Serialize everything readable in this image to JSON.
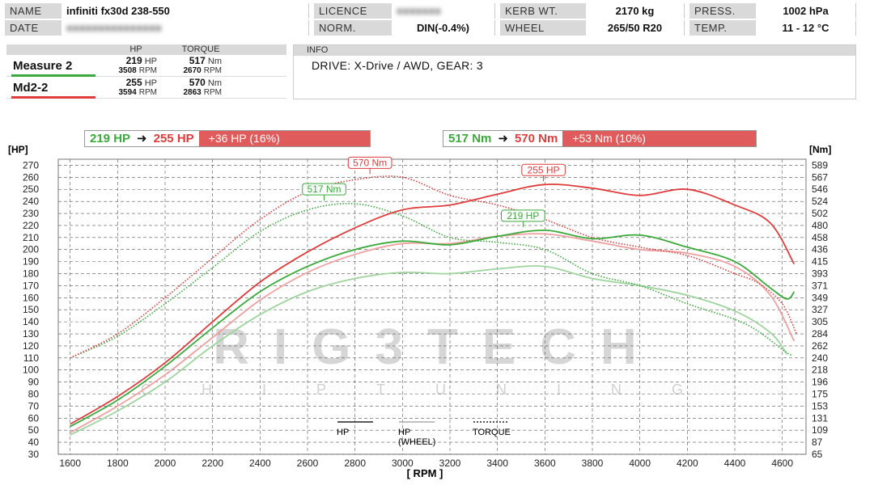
{
  "header": {
    "name_label": "NAME",
    "name_value": "infiniti fx30d 238-550",
    "licence_label": "LICENCE",
    "licence_value": "■■■■■■■",
    "kerb_label": "KERB WT.",
    "kerb_value": "2170 kg",
    "press_label": "PRESS.",
    "press_value": "1002 hPa",
    "date_label": "DATE",
    "date_value": "■■■■■■■■■■■■■■■",
    "norm_label": "NORM.",
    "norm_value": "DIN(-0.4%)",
    "wheel_label": "WHEEL",
    "wheel_value": "265/50 R20",
    "temp_label": "TEMP.",
    "temp_value": "11 - 12 °C"
  },
  "measures": {
    "col_hp": "HP",
    "col_torque": "TORQUE",
    "rows": [
      {
        "name": "Measure 2",
        "hp": "219",
        "hp_unit": "HP",
        "hp_rpm": "3508",
        "tq": "517",
        "tq_unit": "Nm",
        "tq_rpm": "2670",
        "rpm_unit": "RPM",
        "color": "#3aaa3a"
      },
      {
        "name": "Md2-2",
        "hp": "255",
        "hp_unit": "HP",
        "hp_rpm": "3594",
        "tq": "570",
        "tq_unit": "Nm",
        "tq_rpm": "2863",
        "rpm_unit": "RPM",
        "color": "#e03c3c"
      }
    ]
  },
  "info": {
    "label": "INFO",
    "text": "DRIVE: X-Drive / AWD,  GEAR: 3"
  },
  "comparison": {
    "hp_from": "219 HP",
    "hp_to": "255 HP",
    "hp_delta": "+36 HP  (16%)",
    "tq_from": "517 Nm",
    "tq_to": "570 Nm",
    "tq_delta": "+53 Nm  (10%)",
    "arrow": "➜"
  },
  "legend": {
    "hp": "HP",
    "hp_wheel": "HP\n(WHEEL)",
    "torque": "TORQUE"
  },
  "watermark": {
    "line1": "RIG3TECH",
    "line2": "CHIPTUNING"
  },
  "colors": {
    "green": "#3aaa3a",
    "green_light": "#9ed49e",
    "red": "#e03c3c",
    "red_light": "#f0a0a0",
    "grid": "#555555"
  },
  "chart_data": {
    "type": "line",
    "xlabel": "[ RPM ]",
    "ylabel": "[HP]",
    "y2label": "[Nm]",
    "xlim": [
      1550,
      4700
    ],
    "ylim": [
      30,
      275
    ],
    "xticks": [
      1600,
      1800,
      2000,
      2200,
      2400,
      2600,
      2800,
      3000,
      3200,
      3400,
      3600,
      3800,
      4000,
      4200,
      4400,
      4600
    ],
    "yticks": [
      30,
      40,
      50,
      60,
      70,
      80,
      90,
      100,
      110,
      120,
      130,
      140,
      150,
      160,
      170,
      180,
      190,
      200,
      210,
      220,
      230,
      240,
      250,
      260,
      270
    ],
    "y2ticks": [
      65,
      87,
      109,
      131,
      153,
      175,
      196,
      218,
      240,
      262,
      284,
      305,
      327,
      349,
      371,
      393,
      415,
      436,
      458,
      480,
      502,
      524,
      546,
      567,
      589
    ],
    "series": [
      {
        "name": "Md2-2 HP",
        "style": "solid",
        "color": "#e03c3c",
        "x": [
          1600,
          1800,
          2000,
          2200,
          2400,
          2600,
          2800,
          3000,
          3200,
          3400,
          3600,
          3800,
          4000,
          4200,
          4400,
          4550,
          4650
        ],
        "y": [
          55,
          78,
          106,
          140,
          173,
          198,
          218,
          233,
          237,
          246,
          254,
          251,
          245,
          250,
          237,
          222,
          188
        ]
      },
      {
        "name": "Measure 2 HP",
        "style": "solid",
        "color": "#3aaa3a",
        "x": [
          1600,
          1800,
          2000,
          2200,
          2400,
          2600,
          2800,
          3000,
          3200,
          3400,
          3600,
          3800,
          4000,
          4200,
          4400,
          4550,
          4620,
          4650
        ],
        "y": [
          53,
          75,
          103,
          135,
          165,
          186,
          200,
          207,
          204,
          211,
          216,
          209,
          212,
          202,
          190,
          168,
          159,
          165
        ]
      },
      {
        "name": "Md2-2 HP (wheel)",
        "style": "solid",
        "color": "#f0a0a0",
        "x": [
          1600,
          1800,
          2000,
          2200,
          2400,
          2600,
          2800,
          3000,
          3200,
          3400,
          3600,
          3800,
          4000,
          4200,
          4400,
          4550,
          4650
        ],
        "y": [
          48,
          70,
          96,
          127,
          158,
          181,
          196,
          205,
          205,
          211,
          213,
          207,
          200,
          197,
          186,
          162,
          124
        ]
      },
      {
        "name": "Measure 2 HP (wheel)",
        "style": "solid",
        "color": "#9ed49e",
        "x": [
          1600,
          1800,
          2000,
          2200,
          2400,
          2600,
          2800,
          3000,
          3200,
          3400,
          3600,
          3800,
          4000,
          4200,
          4400,
          4550,
          4620
        ],
        "y": [
          46,
          66,
          90,
          120,
          146,
          165,
          176,
          181,
          180,
          184,
          186,
          176,
          170,
          162,
          149,
          131,
          113
        ]
      },
      {
        "name": "Md2-2 Torque",
        "style": "dotted",
        "color": "#e03c3c",
        "x": [
          1600,
          1800,
          2000,
          2200,
          2400,
          2600,
          2800,
          3000,
          3200,
          3400,
          3600,
          3800,
          4000,
          4200,
          4400,
          4500,
          4600,
          4660
        ],
        "y": [
          110,
          130,
          160,
          193,
          225,
          248,
          258,
          260,
          245,
          237,
          225,
          210,
          202,
          195,
          180,
          172,
          155,
          130
        ]
      },
      {
        "name": "Measure 2 Torque",
        "style": "dotted",
        "color": "#3aaa3a",
        "x": [
          1600,
          1800,
          2000,
          2200,
          2400,
          2600,
          2800,
          3000,
          3200,
          3400,
          3600,
          3800,
          4000,
          4200,
          4400,
          4500,
          4600,
          4640
        ],
        "y": [
          110,
          128,
          155,
          185,
          215,
          233,
          238,
          228,
          210,
          206,
          200,
          180,
          170,
          155,
          142,
          132,
          117,
          112
        ]
      }
    ],
    "annotations": [
      {
        "text": "570 Nm",
        "x": 2863,
        "y": 262,
        "color": "#e03c3c"
      },
      {
        "text": "255 HP",
        "x": 3594,
        "y": 256,
        "color": "#e03c3c"
      },
      {
        "text": "517 Nm",
        "x": 2670,
        "y": 240,
        "color": "#3aaa3a"
      },
      {
        "text": "219 HP",
        "x": 3508,
        "y": 218,
        "color": "#3aaa3a"
      }
    ]
  }
}
